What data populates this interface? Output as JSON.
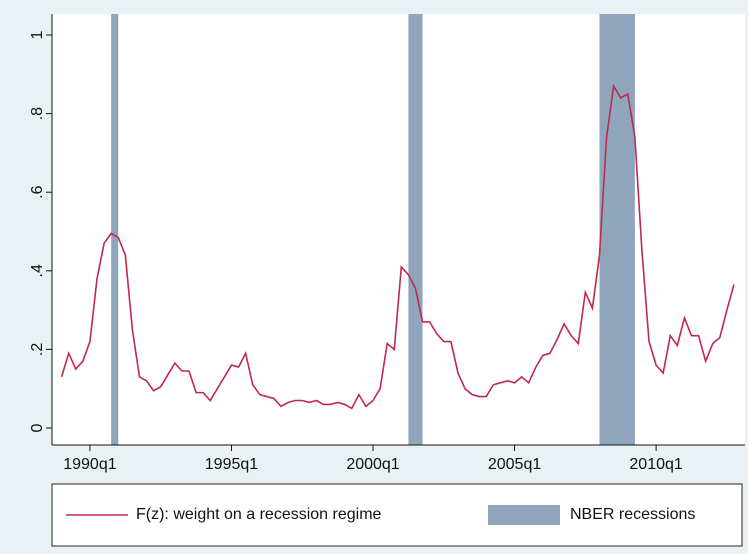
{
  "chart_data": {
    "type": "line",
    "x": [
      1989,
      1989.25,
      1989.5,
      1989.75,
      1990,
      1990.25,
      1990.5,
      1990.75,
      1991,
      1991.25,
      1991.5,
      1991.75,
      1992,
      1992.25,
      1992.5,
      1992.75,
      1993,
      1993.25,
      1993.5,
      1993.75,
      1994,
      1994.25,
      1994.5,
      1994.75,
      1995,
      1995.25,
      1995.5,
      1995.75,
      1996,
      1996.25,
      1996.5,
      1996.75,
      1997,
      1997.25,
      1997.5,
      1997.75,
      1998,
      1998.25,
      1998.5,
      1998.75,
      1999,
      1999.25,
      1999.5,
      1999.75,
      2000,
      2000.25,
      2000.5,
      2000.75,
      2001,
      2001.25,
      2001.5,
      2001.75,
      2002,
      2002.25,
      2002.5,
      2002.75,
      2003,
      2003.25,
      2003.5,
      2003.75,
      2004,
      2004.25,
      2004.5,
      2004.75,
      2005,
      2005.25,
      2005.5,
      2005.75,
      2006,
      2006.25,
      2006.5,
      2006.75,
      2007,
      2007.25,
      2007.5,
      2007.75,
      2008,
      2008.25,
      2008.5,
      2008.75,
      2009,
      2009.25,
      2009.5,
      2009.75,
      2010,
      2010.25,
      2010.5,
      2010.75,
      2011,
      2011.25,
      2011.5,
      2011.75,
      2012,
      2012.25,
      2012.5,
      2012.75
    ],
    "series": [
      {
        "name": "F(z): weight on a recession regime",
        "color": "#c0284f",
        "values": [
          0.13,
          0.19,
          0.15,
          0.17,
          0.22,
          0.38,
          0.47,
          0.495,
          0.485,
          0.44,
          0.25,
          0.13,
          0.12,
          0.095,
          0.105,
          0.135,
          0.165,
          0.145,
          0.145,
          0.09,
          0.09,
          0.07,
          0.1,
          0.13,
          0.16,
          0.155,
          0.19,
          0.11,
          0.085,
          0.08,
          0.075,
          0.055,
          0.065,
          0.07,
          0.07,
          0.065,
          0.07,
          0.06,
          0.06,
          0.065,
          0.06,
          0.05,
          0.085,
          0.055,
          0.07,
          0.1,
          0.215,
          0.2,
          0.41,
          0.39,
          0.355,
          0.27,
          0.27,
          0.24,
          0.22,
          0.22,
          0.14,
          0.1,
          0.085,
          0.08,
          0.08,
          0.11,
          0.115,
          0.12,
          0.115,
          0.13,
          0.115,
          0.155,
          0.185,
          0.19,
          0.225,
          0.265,
          0.235,
          0.215,
          0.345,
          0.305,
          0.44,
          0.74,
          0.87,
          0.84,
          0.85,
          0.74,
          0.45,
          0.22,
          0.16,
          0.14,
          0.235,
          0.21,
          0.28,
          0.235,
          0.235,
          0.17,
          0.215,
          0.23,
          0.3,
          0.365
        ]
      }
    ],
    "recessions": {
      "name": "NBER recessions",
      "color": "#8fa5bb",
      "spans": [
        [
          1990.75,
          1991.0
        ],
        [
          2001.25,
          2001.75
        ],
        [
          2008.0,
          2009.25
        ]
      ]
    },
    "xlim": [
      1988.66,
      2013.14
    ],
    "xticks": [
      {
        "value": 1990,
        "label": "1990q1"
      },
      {
        "value": 1995,
        "label": "1995q1"
      },
      {
        "value": 2000,
        "label": "2000q1"
      },
      {
        "value": 2005,
        "label": "2005q1"
      },
      {
        "value": 2010,
        "label": "2010q1"
      }
    ],
    "ylim": [
      0,
      1.0
    ],
    "yticks": [
      0,
      {
        "value": 0.2,
        "label": ".2"
      },
      {
        "value": 0.4,
        "label": ".4"
      },
      {
        "value": 0.6,
        "label": ".6"
      },
      {
        "value": 0.8,
        "label": ".8"
      },
      1
    ],
    "grid": false
  }
}
